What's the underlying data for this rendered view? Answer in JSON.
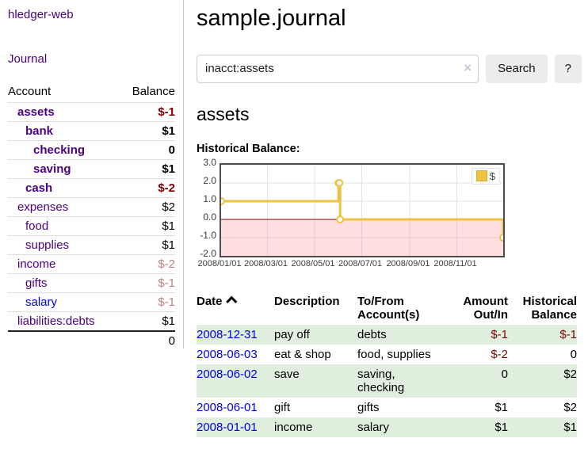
{
  "colors": {
    "link_purple": "#4b0082",
    "link_blue": "#0000e6",
    "negative_red": "#800000",
    "negative_faded_red": "#bc8181",
    "row_stripe_green": "#dfeedd",
    "chart_series_yellow": "#edc240",
    "chart_zero_line_red": "#8b0000"
  },
  "sidebar": {
    "app_title": "hledger-web",
    "journal_link": "Journal",
    "accounts_table": {
      "account_header": "Account",
      "balance_header": "Balance",
      "rows": [
        {
          "name": "assets",
          "balance": "$-1",
          "level": 1,
          "bold": true,
          "balance_class": "neg"
        },
        {
          "name": "bank",
          "balance": "$1",
          "level": 2,
          "bold": true,
          "balance_class": ""
        },
        {
          "name": "checking",
          "balance": "0",
          "level": 3,
          "bold": true,
          "balance_class": ""
        },
        {
          "name": "saving",
          "balance": "$1",
          "level": 3,
          "bold": true,
          "balance_class": ""
        },
        {
          "name": "cash",
          "balance": "$-2",
          "level": 2,
          "bold": true,
          "balance_class": "neg"
        },
        {
          "name": "expenses",
          "balance": "$2",
          "level": 1,
          "bold": false,
          "balance_class": ""
        },
        {
          "name": "food",
          "balance": "$1",
          "level": 2,
          "bold": false,
          "balance_class": ""
        },
        {
          "name": "supplies",
          "balance": "$1",
          "level": 2,
          "bold": false,
          "balance_class": ""
        },
        {
          "name": "income",
          "balance": "$-2",
          "level": 1,
          "bold": false,
          "balance_class": "neg-faded"
        },
        {
          "name": "gifts",
          "balance": "$-1",
          "level": 2,
          "bold": false,
          "balance_class": "neg-faded"
        },
        {
          "name": "salary",
          "balance": "$-1",
          "level": 2,
          "bold": false,
          "balance_class": "neg-faded",
          "link_variant": "unvisited"
        },
        {
          "name": "liabilities:debts",
          "balance": "$1",
          "level": 1,
          "bold": false,
          "balance_class": ""
        }
      ],
      "total": "0"
    }
  },
  "main": {
    "title": "sample.journal",
    "search": {
      "value": "inacct:assets",
      "clear_icon": "×",
      "search_button_label": "Search",
      "help_button_label": "?"
    },
    "account_heading": "assets",
    "chart_title": "Historical Balance:",
    "register": {
      "headers": [
        "Date",
        "Description",
        "To/From Account(s)",
        "Amount Out/In",
        "Historical Balance"
      ],
      "sort_indicator": "ascending",
      "rows": [
        {
          "date": "2008-12-31",
          "description": "pay off",
          "accounts": "debts",
          "amount": "$-1",
          "balance": "$-1"
        },
        {
          "date": "2008-06-03",
          "description": "eat & shop",
          "accounts": "food, supplies",
          "amount": "$-2",
          "balance": "0"
        },
        {
          "date": "2008-06-02",
          "description": "save",
          "accounts": "saving, checking",
          "amount": "0",
          "balance": "$2"
        },
        {
          "date": "2008-06-01",
          "description": "gift",
          "accounts": "gifts",
          "amount": "$1",
          "balance": "$2"
        },
        {
          "date": "2008-01-01",
          "description": "income",
          "accounts": "salary",
          "amount": "$1",
          "balance": "$1"
        }
      ]
    }
  },
  "chart_data": {
    "type": "line",
    "title": "Historical Balance:",
    "style": "step",
    "legend": {
      "label": "$",
      "position": "top-right"
    },
    "xlim_days": [
      0,
      365
    ],
    "ylim": [
      -2,
      3
    ],
    "grid": true,
    "negative_region_highlight": true,
    "series": [
      {
        "name": "$",
        "color": "#edc240",
        "points": [
          {
            "date": "2008-01-01",
            "day": 0,
            "value": 1
          },
          {
            "date": "2008-06-01",
            "day": 152,
            "value": 2
          },
          {
            "date": "2008-06-02",
            "day": 153,
            "value": 2
          },
          {
            "date": "2008-06-03",
            "day": 154,
            "value": 0
          },
          {
            "date": "2008-12-31",
            "day": 365,
            "value": -1
          }
        ]
      }
    ],
    "x_ticks": [
      {
        "day": 0,
        "label": "2008/01/01"
      },
      {
        "day": 60,
        "label": "2008/03/01"
      },
      {
        "day": 121,
        "label": "2008/05/01"
      },
      {
        "day": 182,
        "label": "2008/07/01"
      },
      {
        "day": 244,
        "label": "2008/09/01"
      },
      {
        "day": 305,
        "label": "2008/11/01"
      }
    ],
    "y_ticks": [
      {
        "value": 3,
        "label": "3.0"
      },
      {
        "value": 2,
        "label": "2.0"
      },
      {
        "value": 1,
        "label": "1.0"
      },
      {
        "value": 0,
        "label": "0.0"
      },
      {
        "value": -1,
        "label": "-1.0"
      },
      {
        "value": -2,
        "label": "-2.0"
      }
    ]
  }
}
